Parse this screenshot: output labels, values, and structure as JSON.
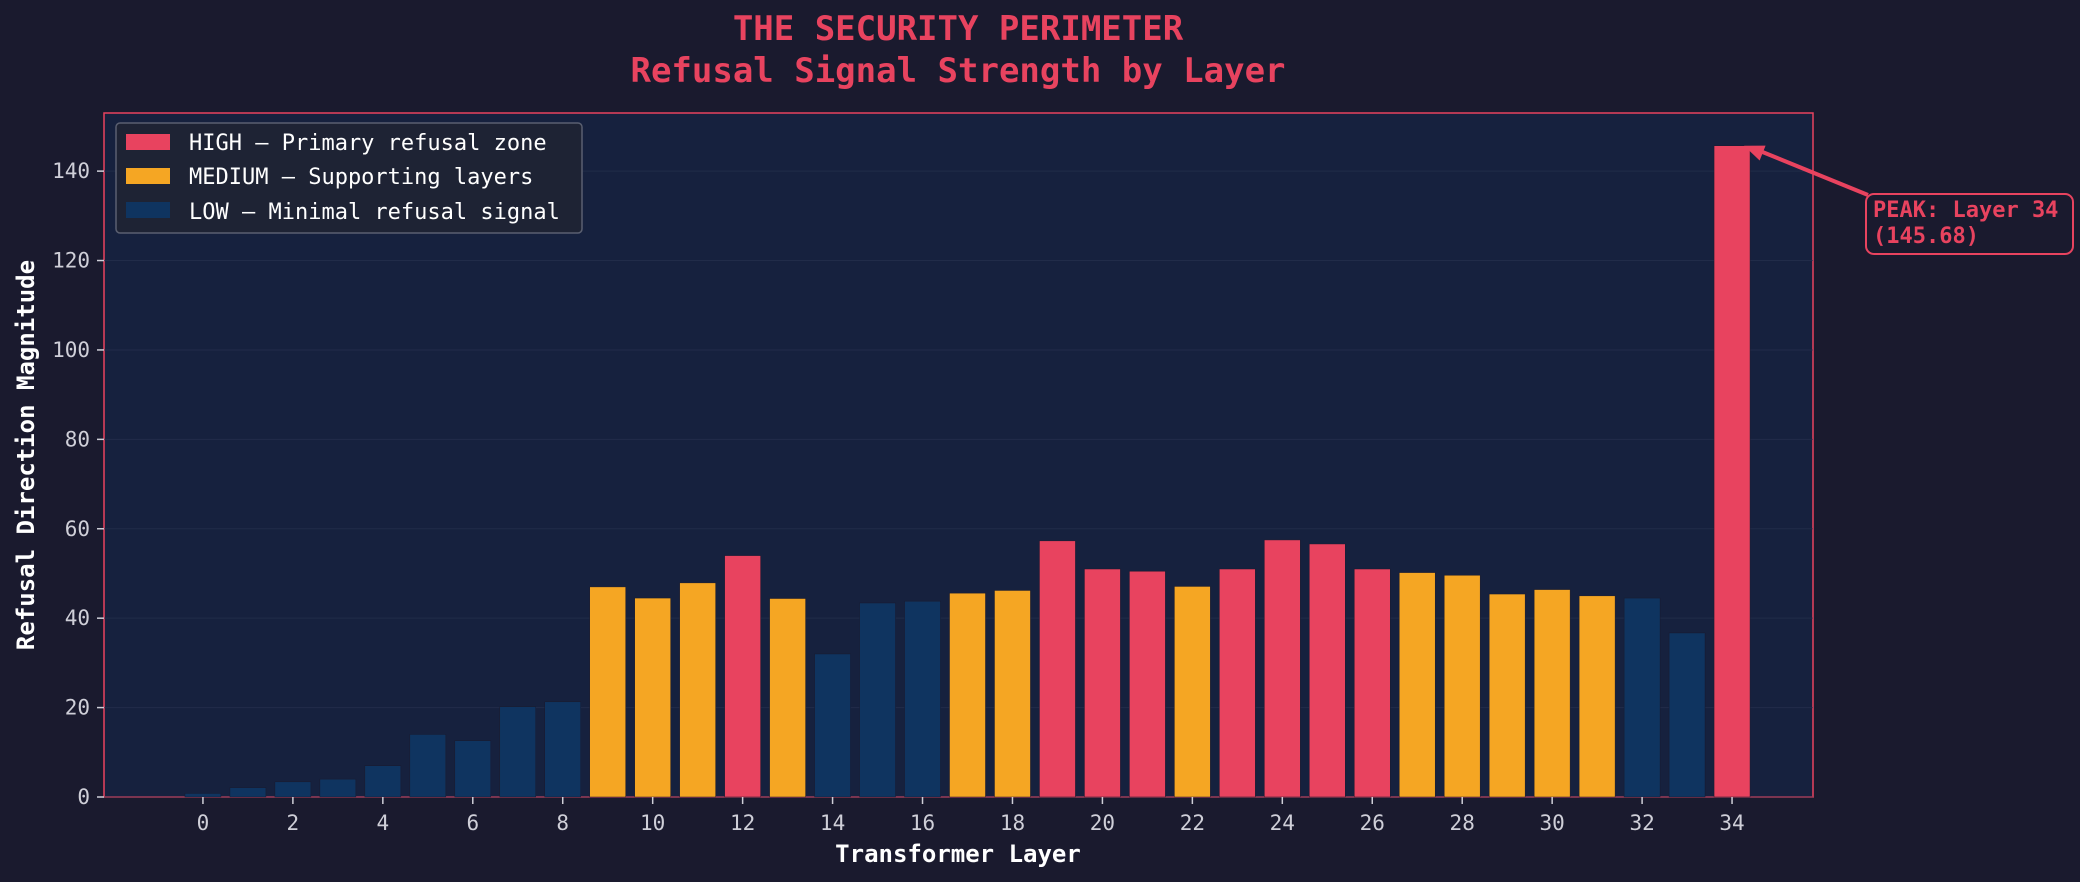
{
  "chart_data": {
    "type": "bar",
    "title": "THE SECURITY PERIMETER",
    "subtitle": "Refusal Signal Strength by Layer",
    "xlabel": "Transformer Layer",
    "ylabel": "Refusal Direction Magnitude",
    "ylim": [
      0,
      153
    ],
    "xlim": [
      -2.2,
      35.8
    ],
    "yticks": [
      0,
      20,
      40,
      60,
      80,
      100,
      120,
      140
    ],
    "xticks": [
      0,
      2,
      4,
      6,
      8,
      10,
      12,
      14,
      16,
      18,
      20,
      22,
      24,
      26,
      28,
      30,
      32,
      34
    ],
    "grid": true,
    "legend_position": "top-left",
    "categories": [
      0,
      1,
      2,
      3,
      4,
      5,
      6,
      7,
      8,
      9,
      10,
      11,
      12,
      13,
      14,
      15,
      16,
      17,
      18,
      19,
      20,
      21,
      22,
      23,
      24,
      25,
      26,
      27,
      28,
      29,
      30,
      31,
      32,
      33,
      34
    ],
    "values": [
      0.8,
      2.1,
      3.4,
      4.0,
      7.0,
      14.0,
      12.6,
      20.2,
      21.3,
      47.0,
      44.5,
      47.9,
      54.0,
      44.4,
      32.0,
      43.4,
      43.8,
      45.6,
      46.2,
      57.3,
      51.0,
      50.5,
      47.1,
      51.0,
      57.5,
      56.6,
      51.0,
      50.2,
      49.6,
      45.4,
      46.4,
      45.0,
      44.5,
      36.7,
      145.68
    ],
    "levels": [
      "LOW",
      "LOW",
      "LOW",
      "LOW",
      "LOW",
      "LOW",
      "LOW",
      "LOW",
      "LOW",
      "MEDIUM",
      "MEDIUM",
      "MEDIUM",
      "HIGH",
      "MEDIUM",
      "LOW",
      "LOW",
      "LOW",
      "MEDIUM",
      "MEDIUM",
      "HIGH",
      "HIGH",
      "HIGH",
      "MEDIUM",
      "HIGH",
      "HIGH",
      "HIGH",
      "HIGH",
      "MEDIUM",
      "MEDIUM",
      "MEDIUM",
      "MEDIUM",
      "MEDIUM",
      "LOW",
      "LOW",
      "HIGH"
    ],
    "legend": [
      {
        "level": "HIGH",
        "label": "HIGH — Primary refusal zone",
        "color": "#e8435f"
      },
      {
        "level": "MEDIUM",
        "label": "MEDIUM — Supporting layers",
        "color": "#f5a623"
      },
      {
        "level": "LOW",
        "label": "LOW — Minimal refusal signal",
        "color": "#0f3460"
      }
    ],
    "annotation": {
      "line1": "PEAK: Layer 34",
      "line2": "(145.68)",
      "layer": 34,
      "value": 145.68
    },
    "colors": {
      "page_background": "#1a1a2e",
      "plot_background": "#16213e",
      "accent": "#e8435f",
      "grid": "#2a3452"
    }
  }
}
